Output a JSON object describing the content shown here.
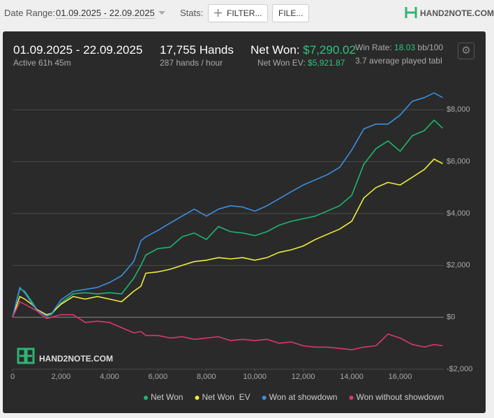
{
  "top_bar": {
    "date_range_label": "Date Range:",
    "date_range": "01.09.2025 - 22.09.2025",
    "stats_label": "Stats:",
    "filter_button": "FILTER...",
    "file_button": "FILE...",
    "logo": "HAND2NOTE.COM"
  },
  "summary": {
    "period": "01.09.2025 - 22.09.2025",
    "active": "Active 61h 45m",
    "hands": "17,755 Hands",
    "hands_rate": "287 hands / hour",
    "net_won_label": "Net Won:",
    "net_won": "$7,290.02",
    "net_won_ev_label": "Net Won  EV:",
    "net_won_ev": "$5,921.87",
    "win_rate_label": "Win Rate:",
    "win_rate": "18.03",
    "win_rate_unit": "bb/100",
    "tables": "3.7 average played tabl"
  },
  "chart_data": {
    "type": "line",
    "watermark": "HAND2NOTE.COM",
    "x": [
      0,
      300,
      500,
      800,
      1000,
      1400,
      1600,
      2000,
      2500,
      3000,
      3500,
      4000,
      4500,
      5000,
      5300,
      5500,
      6000,
      6500,
      7000,
      7500,
      8000,
      8500,
      9000,
      9500,
      10000,
      10500,
      11000,
      11500,
      12000,
      12500,
      13000,
      13500,
      14000,
      14500,
      15000,
      15500,
      16000,
      16500,
      17000,
      17400,
      17755
    ],
    "series": [
      {
        "name": "Net Won",
        "color": "#1fb574",
        "values": [
          0,
          1100,
          1000,
          600,
          300,
          50,
          100,
          550,
          900,
          950,
          900,
          950,
          900,
          1500,
          2000,
          2400,
          2650,
          2700,
          3100,
          3250,
          3000,
          3500,
          3300,
          3250,
          3150,
          3300,
          3550,
          3700,
          3800,
          3900,
          4100,
          4300,
          4700,
          5900,
          6500,
          6800,
          6400,
          7000,
          7200,
          7600,
          7290
        ]
      },
      {
        "name": "Net Won  EV",
        "color": "#f2ee3a",
        "values": [
          0,
          800,
          700,
          500,
          300,
          100,
          150,
          500,
          800,
          700,
          800,
          700,
          600,
          1000,
          1200,
          1700,
          1750,
          1850,
          2000,
          2150,
          2200,
          2300,
          2250,
          2300,
          2200,
          2300,
          2500,
          2600,
          2750,
          3000,
          3200,
          3400,
          3700,
          4600,
          5000,
          5200,
          5100,
          5400,
          5700,
          6100,
          5920
        ]
      },
      {
        "name": "Won at showdown",
        "color": "#3b8fe2",
        "values": [
          0,
          1150,
          940,
          540,
          270,
          50,
          130,
          670,
          1000,
          1075,
          1150,
          1340,
          1600,
          2150,
          2950,
          3100,
          3350,
          3630,
          3900,
          4170,
          3900,
          4170,
          4300,
          4250,
          4090,
          4300,
          4570,
          4840,
          5100,
          5300,
          5500,
          5780,
          6450,
          7260,
          7450,
          7450,
          7800,
          8330,
          8470,
          8650,
          8470
        ]
      },
      {
        "name": "Won without showdown",
        "color": "#d8396c",
        "values": [
          0,
          600,
          500,
          350,
          250,
          -50,
          0,
          100,
          100,
          -200,
          -150,
          -200,
          -400,
          -600,
          -550,
          -700,
          -700,
          -800,
          -750,
          -850,
          -800,
          -750,
          -900,
          -850,
          -900,
          -850,
          -1000,
          -950,
          -1100,
          -1150,
          -1150,
          -1200,
          -1250,
          -1150,
          -1100,
          -650,
          -800,
          -1050,
          -1150,
          -1050,
          -1100
        ]
      }
    ],
    "xlim": [
      0,
      17800
    ],
    "ylim": [
      -2000,
      9300
    ],
    "xticks": [
      0,
      {
        "value": 2000,
        "label": "2,000"
      },
      {
        "value": 4000,
        "label": "4,000"
      },
      {
        "value": 6000,
        "label": "6,000"
      },
      {
        "value": 8000,
        "label": "8,000"
      },
      {
        "value": 10000,
        "label": "10,000"
      },
      {
        "value": 12000,
        "label": "12,000"
      },
      {
        "value": 14000,
        "label": "14,000"
      },
      {
        "value": 16000,
        "label": "16,000"
      }
    ],
    "yticks": [
      {
        "value": -2000,
        "label": "-$2,000"
      },
      {
        "value": 0,
        "label": "$0"
      },
      {
        "value": 2000,
        "label": "$2,000"
      },
      {
        "value": 4000,
        "label": "$4,000"
      },
      {
        "value": 6000,
        "label": "$6,000"
      },
      {
        "value": 8000,
        "label": "$8,000"
      }
    ],
    "grid": true,
    "legend": "bottom"
  }
}
